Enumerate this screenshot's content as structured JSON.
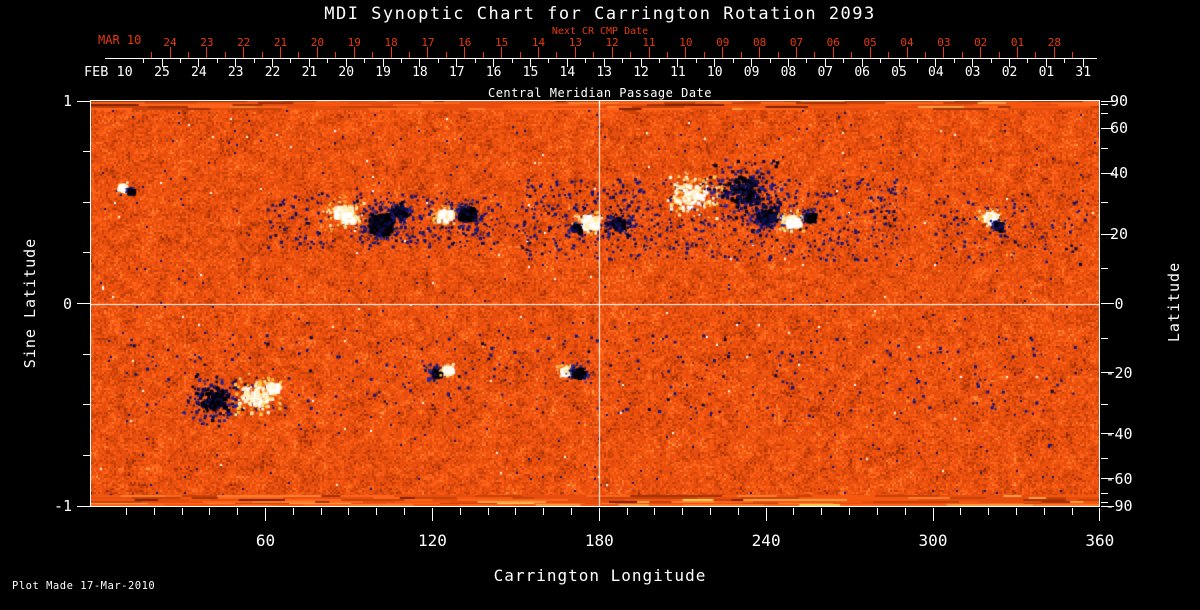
{
  "colors": {
    "background": "#000000",
    "text": "#ffffff",
    "date_red": "#e63b0e",
    "grid_line": "#ffffff"
  },
  "footer": {
    "note": "Plot Made 17-Mar-2010"
  },
  "chart_data": {
    "type": "heatmap",
    "title": "MDI Synoptic Chart for Carrington Rotation 2093",
    "xlabel": "Carrington Longitude",
    "ylabel_left": "Sine Latitude",
    "ylabel_right": "Latitude",
    "xlim": [
      0,
      360
    ],
    "sine_lat_lim": [
      -1,
      1
    ],
    "x_major_ticks": [
      60,
      120,
      180,
      240,
      300,
      360
    ],
    "x_minor_step": 10,
    "sine_lat_major_ticks": [
      1,
      0,
      -1
    ],
    "sine_lat_minor_ticks": [
      0.75,
      0.5,
      0.25,
      -0.25,
      -0.5,
      -0.75
    ],
    "latitude_major_ticks": [
      90,
      60,
      40,
      20,
      0,
      -20,
      -40,
      -60,
      -90
    ],
    "latitude_minor_ticks": [
      80,
      70,
      50,
      30,
      10,
      -10,
      -30,
      -50,
      -70,
      -80
    ],
    "crosshair": {
      "longitude": 180,
      "sine_latitude": 0
    },
    "top_axis": {
      "label": "Central Meridian Passage Date",
      "next_cr_label": "Next CR CMP Date",
      "next_row": {
        "month_label": "MAR 10",
        "days": [
          "24",
          "23",
          "22",
          "21",
          "20",
          "19",
          "18",
          "17",
          "16",
          "15",
          "14",
          "13",
          "12",
          "11",
          "10",
          "09",
          "08",
          "07",
          "06",
          "05",
          "04",
          "03",
          "02",
          "01",
          "28"
        ]
      },
      "cmp_row": {
        "month_label": "FEB 10",
        "days": [
          "25",
          "24",
          "23",
          "22",
          "21",
          "20",
          "19",
          "18",
          "17",
          "16",
          "15",
          "14",
          "13",
          "12",
          "11",
          "10",
          "09",
          "08",
          "07",
          "06",
          "05",
          "04",
          "03",
          "02",
          "01",
          "31"
        ]
      }
    },
    "palette": {
      "stops": [
        [
          0.06,
          "#7f2102"
        ],
        [
          0.14,
          "#a33105"
        ],
        [
          0.3,
          "#c74108"
        ],
        [
          0.55,
          "#e64d0e"
        ],
        [
          0.72,
          "#f5570f"
        ],
        [
          0.86,
          "#fe651b"
        ],
        [
          0.945,
          "#ff7d2c"
        ],
        [
          0.985,
          "#ffa043"
        ],
        [
          1.01,
          "#ffd456"
        ]
      ],
      "negative_speck": "#161678",
      "positive_white": "#ffffff",
      "plage_yellow": "#ffd44e"
    },
    "active_regions": [
      {
        "lon": 88,
        "slat": 0.45,
        "pol": "+",
        "r": 13
      },
      {
        "lon": 101,
        "slat": 0.4,
        "pol": "-",
        "r": 15
      },
      {
        "lon": 108,
        "slat": 0.46,
        "pol": "-",
        "r": 7,
        "style": "scatter"
      },
      {
        "lon": 124,
        "slat": 0.44,
        "pol": "+",
        "r": 8
      },
      {
        "lon": 132,
        "slat": 0.45,
        "pol": "-",
        "r": 10
      },
      {
        "lon": 176,
        "slat": 0.41,
        "pol": "+",
        "r": 10
      },
      {
        "lon": 186,
        "slat": 0.4,
        "pol": "-",
        "r": 8,
        "style": "scatter"
      },
      {
        "lon": 171,
        "slat": 0.38,
        "pol": "-",
        "r": 4
      },
      {
        "lon": 213,
        "slat": 0.54,
        "pol": "+",
        "r": 16,
        "style": "plage"
      },
      {
        "lon": 232,
        "slat": 0.56,
        "pol": "-",
        "r": 20,
        "style": "scatter"
      },
      {
        "lon": 240,
        "slat": 0.43,
        "pol": "-",
        "r": 12,
        "style": "scatter"
      },
      {
        "lon": 249,
        "slat": 0.41,
        "pol": "+",
        "r": 9
      },
      {
        "lon": 255,
        "slat": 0.43,
        "pol": "-",
        "r": 6
      },
      {
        "lon": 320,
        "slat": 0.43,
        "pol": "+",
        "r": 7
      },
      {
        "lon": 323,
        "slat": 0.39,
        "pol": "-",
        "r": 5
      },
      {
        "lon": 8,
        "slat": 0.58,
        "pol": "+",
        "r": 4
      },
      {
        "lon": 11,
        "slat": 0.56,
        "pol": "-",
        "r": 3
      },
      {
        "lon": 41,
        "slat": -0.47,
        "pol": "-",
        "r": 16,
        "style": "scatter"
      },
      {
        "lon": 56,
        "slat": -0.45,
        "pol": "+",
        "r": 14,
        "style": "plage"
      },
      {
        "lon": 62,
        "slat": -0.41,
        "pol": "+",
        "r": 7
      },
      {
        "lon": 121,
        "slat": -0.335,
        "pol": "-",
        "r": 6
      },
      {
        "lon": 125,
        "slat": -0.32,
        "pol": "+",
        "r": 5
      },
      {
        "lon": 167,
        "slat": -0.325,
        "pol": "+",
        "r": 5
      },
      {
        "lon": 172,
        "slat": -0.337,
        "pol": "-",
        "r": 7
      }
    ],
    "speck_fields": [
      {
        "lon0": 150,
        "lon1": 290,
        "slat0": 0.22,
        "slat1": 0.62,
        "count": 700
      },
      {
        "lon0": 60,
        "lon1": 140,
        "slat0": 0.28,
        "slat1": 0.55,
        "count": 260
      },
      {
        "lon0": 95,
        "lon1": 200,
        "slat0": 0.3,
        "slat1": 0.5,
        "count": 150
      },
      {
        "lon0": 10,
        "lon1": 355,
        "slat0": -0.55,
        "slat1": -0.15,
        "count": 330
      },
      {
        "lon0": 300,
        "lon1": 356,
        "slat0": 0.2,
        "slat1": 0.55,
        "count": 120
      }
    ]
  }
}
